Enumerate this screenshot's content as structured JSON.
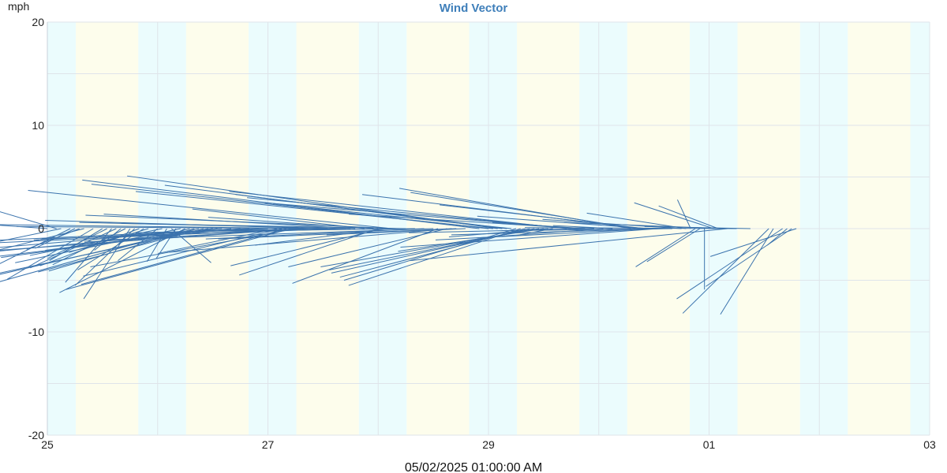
{
  "chart_data": {
    "type": "wind-vector",
    "title": "Wind Vector",
    "ylabel": "mph",
    "ylim": [
      -20,
      20
    ],
    "y_ticks": [
      20,
      10,
      0,
      -10,
      -20
    ],
    "y_tick_labels": [
      "20",
      "10",
      "0",
      "-10",
      "-20"
    ],
    "x_range_days": [
      "2025-04-25",
      "2025-05-03"
    ],
    "x_tick_labels": [
      "25",
      "27",
      "29",
      "01",
      "03"
    ],
    "x_tick_days": [
      "2025-04-25",
      "2025-04-27",
      "2025-04-29",
      "2025-05-01",
      "2025-05-03"
    ],
    "footer": "05/02/2025 01:00:00 AM",
    "grid": true,
    "day_night_shading": true,
    "colors": {
      "vector": "#3b73ad",
      "title": "#3f7fba",
      "night": "#ebfcfd",
      "day": "#fdfdec",
      "grid": "#dfe4ea"
    },
    "vectors": [
      {
        "x": "2025-04-25T00:00",
        "u": -2.0,
        "v": 0.9
      },
      {
        "x": "2025-04-25T02:00",
        "u": -1.1,
        "v": 2.1
      },
      {
        "x": "2025-04-25T03:00",
        "u": -2.5,
        "v": -3.3
      },
      {
        "x": "2025-04-25T05:00",
        "u": -1.1,
        "v": -3.5
      },
      {
        "x": "2025-04-25T06:00",
        "u": -0.6,
        "v": -1.9
      },
      {
        "x": "2025-04-25T07:00",
        "u": -0.8,
        "v": -2.0
      },
      {
        "x": "2025-04-25T08:00",
        "u": -1.5,
        "v": -2.4
      },
      {
        "x": "2025-04-25T10:00",
        "u": -1.3,
        "v": -4.9
      },
      {
        "x": "2025-04-25T12:00",
        "u": -0.8,
        "v": -3.1
      },
      {
        "x": "2025-04-25T13:00",
        "u": -0.9,
        "v": -2.9
      },
      {
        "x": "2025-04-25T14:00",
        "u": -0.7,
        "v": -5.2
      },
      {
        "x": "2025-04-25T15:00",
        "u": -1.3,
        "v": -3.8
      },
      {
        "x": "2025-04-25T16:00",
        "u": -0.4,
        "v": -2.1
      },
      {
        "x": "2025-04-25T17:00",
        "u": -1.1,
        "v": -3.5
      },
      {
        "x": "2025-04-25T18:00",
        "u": -0.7,
        "v": -6.8
      },
      {
        "x": "2025-04-25T19:00",
        "u": -0.9,
        "v": -5.5
      },
      {
        "x": "2025-04-25T20:00",
        "u": -1.5,
        "v": -3.6
      },
      {
        "x": "2025-04-25T21:00",
        "u": -1.0,
        "v": -4.0
      },
      {
        "x": "2025-04-25T22:00",
        "u": -1.2,
        "v": -2.3
      },
      {
        "x": "2025-04-26T00:00",
        "u": -0.6,
        "v": -3.1
      },
      {
        "x": "2025-04-26T01:00",
        "u": -2.0,
        "v": -2.6
      },
      {
        "x": "2025-04-26T02:00",
        "u": -0.3,
        "v": -3.2
      },
      {
        "x": "2025-04-26T03:00",
        "u": 0.6,
        "v": -3.3
      },
      {
        "x": "2025-04-26T04:00",
        "u": -0.3,
        "v": -2.9
      },
      {
        "x": "2025-04-26T05:00",
        "u": -2.5,
        "v": -3.3
      },
      {
        "x": "2025-04-26T06:00",
        "u": -1.9,
        "v": -6.2
      },
      {
        "x": "2025-04-26T07:00",
        "u": -3.3,
        "v": -5.9
      },
      {
        "x": "2025-04-26T08:00",
        "u": -2.2,
        "v": -4.1
      },
      {
        "x": "2025-04-26T09:00",
        "u": -3.4,
        "v": -5.0
      },
      {
        "x": "2025-04-26T10:00",
        "u": -2.5,
        "v": -4.2
      },
      {
        "x": "2025-04-26T11:00",
        "u": -3.3,
        "v": -4.5
      },
      {
        "x": "2025-04-26T12:00",
        "u": -3.2,
        "v": -2.8
      },
      {
        "x": "2025-04-26T13:00",
        "u": -2.6,
        "v": -2.1
      },
      {
        "x": "2025-04-26T14:00",
        "u": -4.8,
        "v": -2.6
      },
      {
        "x": "2025-04-26T16:00",
        "u": -3.8,
        "v": -2.9
      },
      {
        "x": "2025-04-26T18:00",
        "u": -4.2,
        "v": -2.5
      },
      {
        "x": "2025-04-26T20:00",
        "u": -5.4,
        "v": -1.6
      },
      {
        "x": "2025-04-26T22:00",
        "u": -3.4,
        "v": -1.1
      },
      {
        "x": "2025-04-27T00:00",
        "u": -2.0,
        "v": -0.6
      },
      {
        "x": "2025-04-27T02:00",
        "u": -1.8,
        "v": -2.4
      },
      {
        "x": "2025-04-27T03:00",
        "u": -3.0,
        "v": -4.6
      },
      {
        "x": "2025-04-27T04:00",
        "u": -3.1,
        "v": -5.4
      },
      {
        "x": "2025-04-27T05:00",
        "u": -3.4,
        "v": -5.9
      },
      {
        "x": "2025-04-27T06:00",
        "u": -3.1,
        "v": -3.7
      },
      {
        "x": "2025-04-27T07:00",
        "u": -5.0,
        "v": -2.3
      },
      {
        "x": "2025-04-27T08:00",
        "u": -5.1,
        "v": -1.5
      },
      {
        "x": "2025-04-27T09:00",
        "u": -3.4,
        "v": -1.3
      },
      {
        "x": "2025-04-27T10:00",
        "u": -2.7,
        "v": -0.4
      },
      {
        "x": "2025-04-27T11:00",
        "u": -5.1,
        "v": 0.4
      },
      {
        "x": "2025-04-27T12:00",
        "u": -4.2,
        "v": 0.8
      },
      {
        "x": "2025-04-27T13:00",
        "u": -4.7,
        "v": 0.2
      },
      {
        "x": "2025-04-27T15:00",
        "u": -3.2,
        "v": -0.7
      },
      {
        "x": "2025-04-27T17:00",
        "u": -4.6,
        "v": -1.0
      },
      {
        "x": "2025-04-27T18:00",
        "u": -4.1,
        "v": 0.6
      },
      {
        "x": "2025-04-27T19:00",
        "u": -3.8,
        "v": 1.4
      },
      {
        "x": "2025-04-27T21:00",
        "u": -2.6,
        "v": 1.9
      },
      {
        "x": "2025-04-27T23:00",
        "u": -2.5,
        "v": 1.1
      },
      {
        "x": "2025-04-28T00:00",
        "u": -2.1,
        "v": -4.5
      },
      {
        "x": "2025-04-28T01:00",
        "u": -2.3,
        "v": -3.6
      },
      {
        "x": "2025-04-28T02:00",
        "u": -2.0,
        "v": -1.6
      },
      {
        "x": "2025-04-28T03:00",
        "u": -5.5,
        "v": 3.7
      },
      {
        "x": "2025-04-28T04:00",
        "u": -4.7,
        "v": 1.3
      },
      {
        "x": "2025-04-28T06:00",
        "u": -4.3,
        "v": 0.5
      },
      {
        "x": "2025-04-28T08:00",
        "u": -3.6,
        "v": -0.3
      },
      {
        "x": "2025-04-28T10:00",
        "u": -3.3,
        "v": -1.0
      },
      {
        "x": "2025-04-28T12:00",
        "u": -5.0,
        "v": -1.1
      },
      {
        "x": "2025-04-28T13:00",
        "u": -2.2,
        "v": -5.3
      },
      {
        "x": "2025-04-28T15:00",
        "u": -2.4,
        "v": -3.7
      },
      {
        "x": "2025-04-28T16:00",
        "u": -4.3,
        "v": -2.3
      },
      {
        "x": "2025-04-28T17:00",
        "u": -3.6,
        "v": -1.0
      },
      {
        "x": "2025-04-28T19:00",
        "u": -2.1,
        "v": -0.6
      },
      {
        "x": "2025-04-28T22:00",
        "u": -6.0,
        "v": 4.7
      },
      {
        "x": "2025-04-29T00:00",
        "u": -6.0,
        "v": 4.3
      },
      {
        "x": "2025-04-29T01:00",
        "u": -5.4,
        "v": 3.6
      },
      {
        "x": "2025-04-29T02:00",
        "u": -5.6,
        "v": 5.1
      },
      {
        "x": "2025-04-29T03:00",
        "u": -5.1,
        "v": 4.2
      },
      {
        "x": "2025-04-29T04:00",
        "u": -4.1,
        "v": 3.3
      },
      {
        "x": "2025-04-29T05:00",
        "u": -3.6,
        "v": 2.4
      },
      {
        "x": "2025-04-29T06:00",
        "u": -2.6,
        "v": -5.0
      },
      {
        "x": "2025-04-29T07:00",
        "u": -2.6,
        "v": -5.5
      },
      {
        "x": "2025-04-29T08:00",
        "u": -2.8,
        "v": -4.7
      },
      {
        "x": "2025-04-29T09:00",
        "u": -3.0,
        "v": -4.3
      },
      {
        "x": "2025-04-29T10:00",
        "u": -3.1,
        "v": -4.0
      },
      {
        "x": "2025-04-29T11:00",
        "u": -3.3,
        "v": -3.7
      },
      {
        "x": "2025-04-29T12:00",
        "u": -2.2,
        "v": -2.2
      },
      {
        "x": "2025-04-29T13:00",
        "u": -1.5,
        "v": -0.8
      },
      {
        "x": "2025-04-29T14:00",
        "u": -0.5,
        "v": -0.6
      },
      {
        "x": "2025-04-29T17:00",
        "u": -5.1,
        "v": 3.6
      },
      {
        "x": "2025-04-29T18:00",
        "u": -4.9,
        "v": 3.0
      },
      {
        "x": "2025-04-29T19:00",
        "u": -4.7,
        "v": 2.5
      },
      {
        "x": "2025-04-29T20:00",
        "u": -3.5,
        "v": 1.4
      },
      {
        "x": "2025-04-29T21:00",
        "u": -1.4,
        "v": 0.6
      },
      {
        "x": "2025-04-29T23:00",
        "u": -2.8,
        "v": -0.4
      },
      {
        "x": "2025-04-30T01:00",
        "u": -1.9,
        "v": -0.9
      },
      {
        "x": "2025-04-30T03:00",
        "u": -0.9,
        "v": 0.3
      },
      {
        "x": "2025-04-30T07:00",
        "u": -3.5,
        "v": 3.9
      },
      {
        "x": "2025-04-30T08:00",
        "u": -3.4,
        "v": 3.5
      },
      {
        "x": "2025-04-30T09:00",
        "u": -4.2,
        "v": 3.3
      },
      {
        "x": "2025-04-30T10:00",
        "u": -3.1,
        "v": 2.3
      },
      {
        "x": "2025-04-30T11:00",
        "u": -2.6,
        "v": 1.2
      },
      {
        "x": "2025-04-30T12:00",
        "u": -3.3,
        "v": -1.1
      },
      {
        "x": "2025-04-30T13:00",
        "u": -3.9,
        "v": -1.8
      },
      {
        "x": "2025-04-30T14:00",
        "u": -3.2,
        "v": -0.6
      },
      {
        "x": "2025-04-30T16:00",
        "u": -2.6,
        "v": -0.2
      },
      {
        "x": "2025-04-30T18:00",
        "u": -2.1,
        "v": 0.9
      },
      {
        "x": "2025-04-30T19:00",
        "u": -1.5,
        "v": 1.5
      },
      {
        "x": "2025-04-30T20:00",
        "u": -0.2,
        "v": 2.8
      },
      {
        "x": "2025-04-30T21:00",
        "u": -0.9,
        "v": -3.7
      },
      {
        "x": "2025-04-30T22:00",
        "u": -0.8,
        "v": -3.2
      },
      {
        "x": "2025-04-30T23:00",
        "u": 0.0,
        "v": -5.9
      },
      {
        "x": "2025-05-01T01:00",
        "u": -1.2,
        "v": 2.5
      },
      {
        "x": "2025-05-01T02:00",
        "u": -0.9,
        "v": 2.2
      },
      {
        "x": "2025-05-01T03:00",
        "u": -2.4,
        "v": 0.6
      },
      {
        "x": "2025-05-01T04:00",
        "u": -4.8,
        "v": -3.1
      },
      {
        "x": "2025-05-01T06:00",
        "u": -3.2,
        "v": 0.1
      },
      {
        "x": "2025-05-01T09:00",
        "u": -1.6,
        "v": 0.2
      },
      {
        "x": "2025-05-01T13:00",
        "u": -1.3,
        "v": -8.2
      },
      {
        "x": "2025-05-01T14:00",
        "u": -0.8,
        "v": -8.3
      },
      {
        "x": "2025-05-01T16:00",
        "u": -1.6,
        "v": -6.8
      },
      {
        "x": "2025-05-01T17:00",
        "u": -0.3,
        "v": -1.6
      },
      {
        "x": "2025-05-01T18:00",
        "u": -1.3,
        "v": -5.6
      },
      {
        "x": "2025-05-01T19:00",
        "u": -1.3,
        "v": -2.7
      }
    ]
  }
}
